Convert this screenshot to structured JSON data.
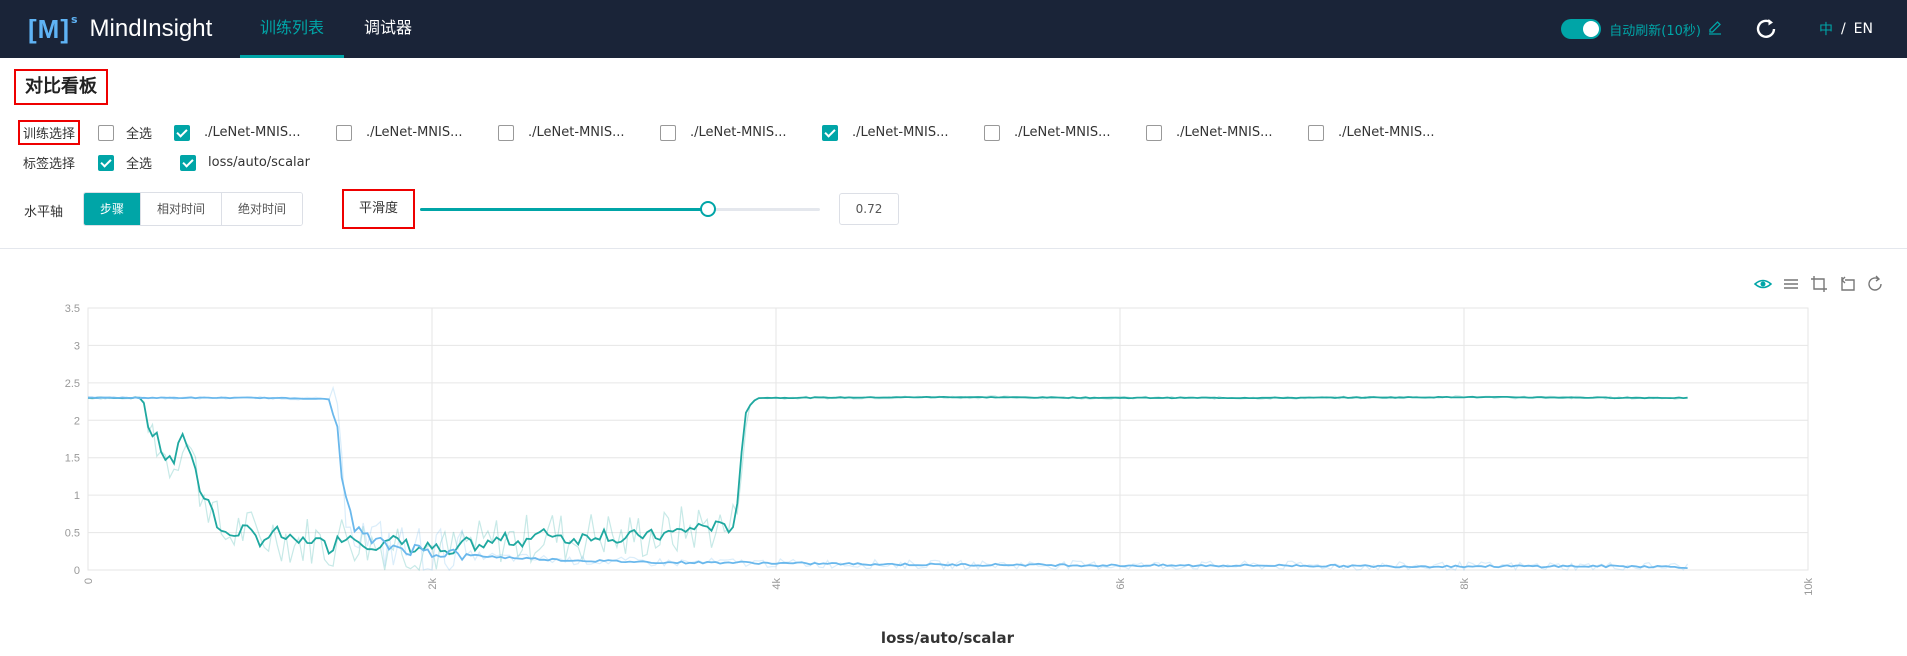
{
  "header": {
    "logo_mark": "[M]",
    "logo_sup": "s",
    "app_name": "MindInsight",
    "nav": [
      {
        "label": "训练列表",
        "active": true
      },
      {
        "label": "调试器",
        "active": false
      }
    ],
    "auto_refresh_label": "自动刷新(10秒)",
    "auto_refresh_on": true,
    "lang_zh": "中",
    "lang_sep": "/",
    "lang_en": "EN"
  },
  "page_title": "对比看板",
  "train_select": {
    "label": "训练选择",
    "select_all": {
      "label": "全选",
      "checked": false
    },
    "runs": [
      {
        "label": "./LeNet-MNIS...",
        "checked": true
      },
      {
        "label": "./LeNet-MNIS...",
        "checked": false
      },
      {
        "label": "./LeNet-MNIS...",
        "checked": false
      },
      {
        "label": "./LeNet-MNIS...",
        "checked": false
      },
      {
        "label": "./LeNet-MNIS...",
        "checked": true
      },
      {
        "label": "./LeNet-MNIS...",
        "checked": false
      },
      {
        "label": "./LeNet-MNIS...",
        "checked": false
      },
      {
        "label": "./LeNet-MNIS...",
        "checked": false
      }
    ]
  },
  "tag_select": {
    "label": "标签选择",
    "select_all": {
      "label": "全选",
      "checked": true
    },
    "tags": [
      {
        "label": "loss/auto/scalar",
        "checked": true
      }
    ]
  },
  "axis": {
    "label": "水平轴",
    "options": [
      {
        "label": "步骤",
        "active": true
      },
      {
        "label": "相对时间",
        "active": false
      },
      {
        "label": "绝对时间",
        "active": false
      }
    ]
  },
  "smoothness": {
    "label": "平滑度",
    "value": "0.72",
    "fraction": 0.72
  },
  "colors": {
    "accent": "#00a5a7",
    "series_teal": "#1fa8a0",
    "series_blue": "#6ab8ec",
    "header_bg": "#1a2438"
  },
  "chart_data": {
    "type": "line",
    "title": "loss/auto/scalar",
    "xlabel": "",
    "ylabel": "",
    "xlim": [
      0,
      10000
    ],
    "ylim": [
      0,
      3.5
    ],
    "x_ticks": [
      "0",
      "2k",
      "4k",
      "6k",
      "8k",
      "10k"
    ],
    "y_ticks": [
      "0",
      "0.5",
      "1",
      "1.5",
      "2",
      "2.5",
      "3",
      "3.5"
    ],
    "grid": true,
    "legend": "none",
    "series": [
      {
        "color": "#1fa8a0",
        "x": [
          0,
          200,
          320,
          350,
          400,
          450,
          500,
          520,
          560,
          600,
          650,
          700,
          750,
          800,
          900,
          1000,
          1100,
          1200,
          1300,
          1400,
          1500,
          1600,
          1700,
          1800,
          1900,
          2000,
          2100,
          2200,
          2300,
          2400,
          2500,
          2600,
          2700,
          2800,
          2900,
          3000,
          3100,
          3200,
          3300,
          3400,
          3500,
          3600,
          3700,
          3750,
          3780,
          3800,
          3830,
          3860,
          3900,
          4000,
          5000,
          6000,
          7000,
          8000,
          9000,
          9300
        ],
        "y": [
          2.3,
          2.3,
          2.3,
          1.9,
          1.75,
          1.5,
          1.45,
          1.6,
          1.8,
          1.55,
          1.1,
          0.95,
          0.6,
          0.45,
          0.55,
          0.4,
          0.5,
          0.35,
          0.42,
          0.3,
          0.48,
          0.38,
          0.32,
          0.4,
          0.28,
          0.3,
          0.2,
          0.35,
          0.32,
          0.42,
          0.38,
          0.45,
          0.5,
          0.4,
          0.45,
          0.5,
          0.38,
          0.48,
          0.45,
          0.5,
          0.55,
          0.6,
          0.55,
          0.6,
          1.0,
          1.6,
          2.1,
          2.25,
          2.3,
          2.3,
          2.31,
          2.3,
          2.3,
          2.31,
          2.3,
          2.3
        ]
      },
      {
        "color": "#6ab8ec",
        "x": [
          0,
          500,
          1000,
          1300,
          1400,
          1450,
          1480,
          1500,
          1550,
          1600,
          1700,
          1800,
          1900,
          2000,
          2200,
          2400,
          2600,
          2800,
          3000,
          3200,
          3400,
          3600,
          3800,
          4000,
          4500,
          5000,
          5500,
          6000,
          6500,
          7000,
          7500,
          8000,
          8500,
          9000,
          9300
        ],
        "y": [
          2.3,
          2.3,
          2.3,
          2.29,
          2.28,
          1.9,
          1.2,
          0.9,
          0.6,
          0.45,
          0.35,
          0.3,
          0.28,
          0.25,
          0.2,
          0.17,
          0.15,
          0.13,
          0.12,
          0.11,
          0.1,
          0.1,
          0.1,
          0.09,
          0.08,
          0.07,
          0.07,
          0.06,
          0.06,
          0.06,
          0.05,
          0.05,
          0.05,
          0.05,
          0.04
        ]
      }
    ]
  }
}
